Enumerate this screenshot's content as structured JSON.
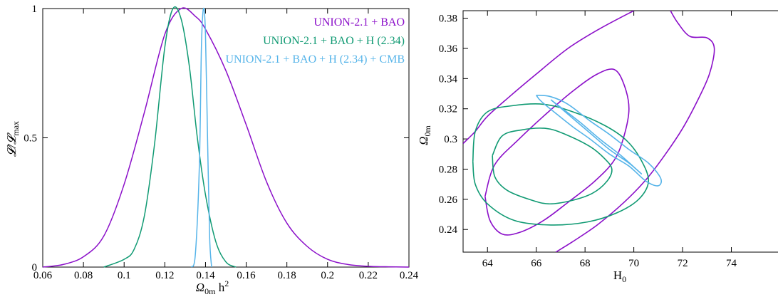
{
  "colors": {
    "union_bao": "#8b0fc9",
    "union_bao_h": "#109a73",
    "union_bao_h_cmb": "#56b4e9"
  },
  "left": {
    "xlabel": "Ω0m h2",
    "ylabel": "L/Lmax",
    "xticks": [
      "0.06",
      "0.08",
      "0.1",
      "0.12",
      "0.14",
      "0.16",
      "0.18",
      "0.2",
      "0.22",
      "0.24"
    ],
    "yticks": [
      "0",
      "0.5",
      "1"
    ],
    "legend": [
      "UNION-2.1 + BAO",
      "UNION-2.1 + BAO + H (2.34)",
      "UNION-2.1 + BAO + H (2.34) + CMB"
    ]
  },
  "right": {
    "xlabel": "H0",
    "ylabel": "Ω0m",
    "xticks": [
      "64",
      "66",
      "68",
      "70",
      "72",
      "74"
    ],
    "yticks": [
      "0.24",
      "0.26",
      "0.28",
      "0.3",
      "0.32",
      "0.34",
      "0.36",
      "0.38"
    ]
  },
  "chart_data": [
    {
      "type": "line",
      "xlabel": "Ω0m h²",
      "ylabel": "L/Lmax",
      "xlim": [
        0.06,
        0.24
      ],
      "ylim": [
        0,
        1
      ],
      "series": [
        {
          "name": "UNION-2.1 + BAO",
          "color": "#8b0fc9",
          "points": [
            [
              0.06,
              0.0
            ],
            [
              0.07,
              0.01
            ],
            [
              0.08,
              0.04
            ],
            [
              0.09,
              0.12
            ],
            [
              0.1,
              0.32
            ],
            [
              0.11,
              0.6
            ],
            [
              0.12,
              0.9
            ],
            [
              0.128,
              1.0
            ],
            [
              0.135,
              0.97
            ],
            [
              0.14,
              0.92
            ],
            [
              0.15,
              0.76
            ],
            [
              0.16,
              0.55
            ],
            [
              0.17,
              0.33
            ],
            [
              0.18,
              0.17
            ],
            [
              0.19,
              0.08
            ],
            [
              0.2,
              0.03
            ],
            [
              0.21,
              0.01
            ],
            [
              0.22,
              0.003
            ],
            [
              0.23,
              0.001
            ],
            [
              0.24,
              0.0
            ]
          ]
        },
        {
          "name": "UNION-2.1 + BAO + H (2.34)",
          "color": "#109a73",
          "points": [
            [
              0.09,
              0.0
            ],
            [
              0.1,
              0.03
            ],
            [
              0.105,
              0.07
            ],
            [
              0.11,
              0.2
            ],
            [
              0.115,
              0.48
            ],
            [
              0.12,
              0.85
            ],
            [
              0.124,
              1.0
            ],
            [
              0.128,
              0.96
            ],
            [
              0.132,
              0.78
            ],
            [
              0.136,
              0.5
            ],
            [
              0.14,
              0.28
            ],
            [
              0.145,
              0.1
            ],
            [
              0.15,
              0.02
            ],
            [
              0.155,
              0.0
            ]
          ]
        },
        {
          "name": "UNION-2.1 + BAO + H (2.34) + CMB",
          "color": "#56b4e9",
          "points": [
            [
              0.133,
              0.0
            ],
            [
              0.135,
              0.05
            ],
            [
              0.137,
              0.4
            ],
            [
              0.138,
              0.85
            ],
            [
              0.139,
              1.0
            ],
            [
              0.14,
              0.9
            ],
            [
              0.141,
              0.5
            ],
            [
              0.142,
              0.12
            ],
            [
              0.143,
              0.0
            ]
          ]
        }
      ]
    },
    {
      "type": "line",
      "xlabel": "H0",
      "ylabel": "Ω0m",
      "xlim": [
        63,
        76
      ],
      "ylim": [
        0.225,
        0.385
      ],
      "series": [
        {
          "name": "UNION-2.1 + BAO",
          "color": "#8b0fc9",
          "contours": [
            [
              [
                63.9,
                0.262
              ],
              [
                64.1,
                0.246
              ],
              [
                64.6,
                0.237
              ],
              [
                65.3,
                0.238
              ],
              [
                66.3,
                0.246
              ],
              [
                67.3,
                0.258
              ],
              [
                68.4,
                0.272
              ],
              [
                69.2,
                0.286
              ],
              [
                69.6,
                0.302
              ],
              [
                69.8,
                0.32
              ],
              [
                69.6,
                0.336
              ],
              [
                69.2,
                0.346
              ],
              [
                68.5,
                0.343
              ],
              [
                67.6,
                0.333
              ],
              [
                66.5,
                0.318
              ],
              [
                65.3,
                0.3
              ],
              [
                64.3,
                0.283
              ],
              [
                63.9,
                0.262
              ]
            ],
            [
              [
                66.8,
                0.225
              ],
              [
                67.5,
                0.232
              ],
              [
                68.5,
                0.243
              ],
              [
                69.6,
                0.258
              ],
              [
                70.5,
                0.273
              ],
              [
                71.3,
                0.29
              ],
              [
                72.0,
                0.307
              ],
              [
                72.6,
                0.325
              ],
              [
                73.1,
                0.343
              ],
              [
                73.3,
                0.36
              ],
              [
                73.0,
                0.367
              ],
              [
                72.3,
                0.368
              ],
              [
                71.8,
                0.377
              ],
              [
                71.5,
                0.385
              ]
            ],
            [
              [
                70.0,
                0.385
              ],
              [
                68.6,
                0.373
              ],
              [
                67.3,
                0.36
              ],
              [
                66.0,
                0.343
              ],
              [
                64.9,
                0.328
              ],
              [
                64.0,
                0.315
              ],
              [
                63.5,
                0.305
              ],
              [
                63.0,
                0.297
              ]
            ]
          ]
        },
        {
          "name": "UNION-2.1 + BAO + H (2.34)",
          "color": "#109a73",
          "contours": [
            [
              [
                64.2,
                0.289
              ],
              [
                64.6,
                0.302
              ],
              [
                65.4,
                0.306
              ],
              [
                66.4,
                0.307
              ],
              [
                67.2,
                0.303
              ],
              [
                68.2,
                0.295
              ],
              [
                68.8,
                0.287
              ],
              [
                69.1,
                0.28
              ],
              [
                68.9,
                0.272
              ],
              [
                68.3,
                0.264
              ],
              [
                67.4,
                0.259
              ],
              [
                66.5,
                0.257
              ],
              [
                65.7,
                0.26
              ],
              [
                64.8,
                0.266
              ],
              [
                64.3,
                0.275
              ],
              [
                64.2,
                0.289
              ]
            ],
            [
              [
                63.4,
                0.285
              ],
              [
                63.5,
                0.305
              ],
              [
                64.0,
                0.318
              ],
              [
                65.0,
                0.322
              ],
              [
                66.3,
                0.323
              ],
              [
                67.5,
                0.318
              ],
              [
                68.8,
                0.309
              ],
              [
                69.7,
                0.299
              ],
              [
                70.3,
                0.286
              ],
              [
                70.6,
                0.272
              ],
              [
                70.2,
                0.26
              ],
              [
                69.3,
                0.251
              ],
              [
                68.1,
                0.245
              ],
              [
                66.6,
                0.243
              ],
              [
                65.1,
                0.246
              ],
              [
                64.0,
                0.257
              ],
              [
                63.5,
                0.27
              ],
              [
                63.4,
                0.285
              ]
            ]
          ]
        },
        {
          "name": "UNION-2.1 + BAO + H (2.34) + CMB",
          "color": "#56b4e9",
          "contours": [
            [
              [
                66.6,
                0.326
              ],
              [
                67.4,
                0.315
              ],
              [
                68.2,
                0.304
              ],
              [
                69.0,
                0.293
              ],
              [
                69.8,
                0.284
              ],
              [
                70.3,
                0.277
              ],
              [
                70.1,
                0.28
              ],
              [
                69.4,
                0.29
              ],
              [
                68.6,
                0.3
              ],
              [
                67.8,
                0.311
              ],
              [
                67.0,
                0.321
              ],
              [
                66.6,
                0.326
              ]
            ],
            [
              [
                66.0,
                0.329
              ],
              [
                66.6,
                0.328
              ],
              [
                67.3,
                0.323
              ],
              [
                68.2,
                0.312
              ],
              [
                69.0,
                0.303
              ],
              [
                69.8,
                0.293
              ],
              [
                70.6,
                0.284
              ],
              [
                71.1,
                0.274
              ],
              [
                71.0,
                0.269
              ],
              [
                70.5,
                0.272
              ],
              [
                69.8,
                0.282
              ],
              [
                69.0,
                0.29
              ],
              [
                68.2,
                0.3
              ],
              [
                67.5,
                0.308
              ],
              [
                66.8,
                0.317
              ],
              [
                66.2,
                0.325
              ],
              [
                66.0,
                0.329
              ]
            ]
          ]
        }
      ]
    }
  ]
}
